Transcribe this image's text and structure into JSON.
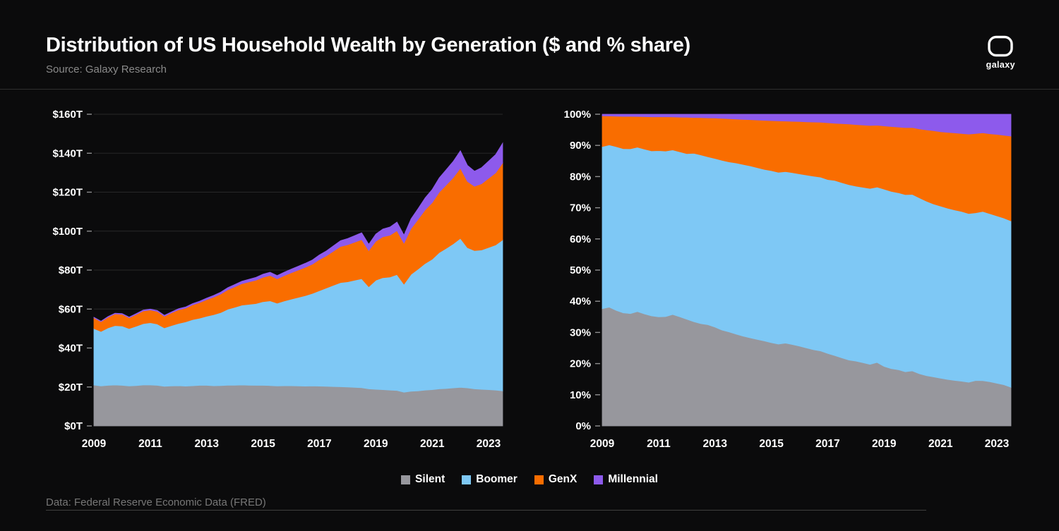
{
  "header": {
    "title": "Distribution of US Household Wealth by Generation ($ and % share)",
    "subtitle": "Source: Galaxy Research",
    "brand_word": "galaxy"
  },
  "footer": {
    "text": "Data: Federal Reserve Economic Data (FRED)"
  },
  "legend": {
    "position": "bottom-center",
    "items": [
      {
        "label": "Silent",
        "color": "#97979d"
      },
      {
        "label": "Boomer",
        "color": "#7ec8f5"
      },
      {
        "label": "GenX",
        "color": "#f96d00"
      },
      {
        "label": "Millennial",
        "color": "#8d5aec"
      }
    ]
  },
  "colors": {
    "background": "#0b0b0c",
    "grid": "#282828",
    "tick_dash": "#8f8f8f",
    "axis_text": "#ffffff",
    "muted_text": "#8a8a8a",
    "divider": "#2f2f2f"
  },
  "chart_data": [
    {
      "type": "area",
      "stacked": true,
      "grid": true,
      "legend_position": "bottom",
      "ylim": [
        0,
        160
      ],
      "ytick_step": 20,
      "ytick_labels": [
        "$0T",
        "$20T",
        "$40T",
        "$60T",
        "$80T",
        "$100T",
        "$120T",
        "$140T",
        "$160T"
      ],
      "xtick_values": [
        2009,
        2011,
        2013,
        2015,
        2017,
        2019,
        2021,
        2023
      ],
      "x": [
        2009,
        2009.25,
        2009.5,
        2009.75,
        2010,
        2010.25,
        2010.5,
        2010.75,
        2011,
        2011.25,
        2011.5,
        2011.75,
        2012,
        2012.25,
        2012.5,
        2012.75,
        2013,
        2013.25,
        2013.5,
        2013.75,
        2014,
        2014.25,
        2014.5,
        2014.75,
        2015,
        2015.25,
        2015.5,
        2015.75,
        2016,
        2016.25,
        2016.5,
        2016.75,
        2017,
        2017.25,
        2017.5,
        2017.75,
        2018,
        2018.25,
        2018.5,
        2018.75,
        2019,
        2019.25,
        2019.5,
        2019.75,
        2020,
        2020.25,
        2020.5,
        2020.75,
        2021,
        2021.25,
        2021.5,
        2021.75,
        2022,
        2022.25,
        2022.5,
        2022.75,
        2023,
        2023.25,
        2023.5
      ],
      "series": [
        {
          "name": "Silent",
          "values": [
            21.0,
            20.5,
            20.8,
            21.0,
            20.8,
            20.5,
            20.7,
            21.0,
            21.0,
            20.8,
            20.3,
            20.5,
            20.6,
            20.4,
            20.6,
            20.8,
            20.8,
            20.6,
            20.7,
            20.9,
            20.9,
            21.0,
            20.9,
            20.8,
            20.8,
            20.7,
            20.5,
            20.6,
            20.6,
            20.5,
            20.4,
            20.5,
            20.4,
            20.3,
            20.2,
            20.1,
            20.0,
            19.8,
            19.6,
            19.0,
            18.8,
            18.6,
            18.4,
            18.2,
            17.3,
            17.8,
            18.0,
            18.4,
            18.6,
            19.0,
            19.2,
            19.5,
            19.8,
            19.5,
            19.0,
            18.8,
            18.6,
            18.4,
            18.0
          ]
        },
        {
          "name": "Boomer",
          "values": [
            29.0,
            28.0,
            29.5,
            30.5,
            30.5,
            29.5,
            30.5,
            31.5,
            32.0,
            31.5,
            30.0,
            31.0,
            32.0,
            33.0,
            34.0,
            34.5,
            35.5,
            36.5,
            37.5,
            39.0,
            40.0,
            41.0,
            41.5,
            42.0,
            43.0,
            43.5,
            42.5,
            43.5,
            44.5,
            45.5,
            46.5,
            47.5,
            49.0,
            50.5,
            52.0,
            53.5,
            54.0,
            55.0,
            56.0,
            52.5,
            56.0,
            57.5,
            58.0,
            59.5,
            55.5,
            60.0,
            62.5,
            65.0,
            67.0,
            70.0,
            72.0,
            74.0,
            76.5,
            72.0,
            71.0,
            71.5,
            73.0,
            74.5,
            77.5
          ]
        },
        {
          "name": "GenX",
          "values": [
            5.5,
            5.0,
            5.5,
            6.0,
            6.0,
            5.5,
            6.0,
            6.5,
            6.5,
            6.5,
            6.0,
            6.5,
            7.0,
            7.0,
            7.5,
            8.0,
            8.5,
            9.0,
            9.5,
            10.0,
            10.5,
            11.0,
            11.5,
            12.0,
            12.5,
            13.0,
            12.5,
            13.0,
            13.5,
            14.0,
            14.5,
            15.0,
            16.0,
            16.5,
            17.5,
            18.5,
            19.0,
            19.5,
            20.0,
            18.5,
            20.0,
            21.0,
            21.5,
            22.5,
            21.0,
            23.5,
            25.5,
            27.5,
            29.0,
            31.0,
            32.5,
            34.0,
            36.0,
            34.0,
            33.0,
            34.0,
            35.5,
            37.0,
            39.5
          ]
        },
        {
          "name": "Millennial",
          "values": [
            0.3,
            0.3,
            0.35,
            0.4,
            0.4,
            0.4,
            0.45,
            0.5,
            0.5,
            0.5,
            0.5,
            0.55,
            0.6,
            0.65,
            0.7,
            0.75,
            0.8,
            0.9,
            1.0,
            1.1,
            1.2,
            1.3,
            1.4,
            1.5,
            1.6,
            1.7,
            1.7,
            1.8,
            1.9,
            2.0,
            2.1,
            2.2,
            2.4,
            2.6,
            2.8,
            3.0,
            3.2,
            3.4,
            3.6,
            3.3,
            3.7,
            4.0,
            4.2,
            4.5,
            4.2,
            5.0,
            5.6,
            6.2,
            6.8,
            7.4,
            7.9,
            8.4,
            9.0,
            8.3,
            7.8,
            8.3,
            8.8,
            9.4,
            10.2
          ]
        }
      ]
    },
    {
      "type": "area",
      "stacked": true,
      "grid": true,
      "legend_position": "bottom",
      "values_are": "percent_share_of_chart_0_series",
      "ylim": [
        0,
        100
      ],
      "ytick_step": 10,
      "ytick_labels": [
        "0%",
        "10%",
        "20%",
        "30%",
        "40%",
        "50%",
        "60%",
        "70%",
        "80%",
        "90%",
        "100%"
      ],
      "xtick_values": [
        2009,
        2011,
        2013,
        2015,
        2017,
        2019,
        2021,
        2023
      ]
    }
  ]
}
